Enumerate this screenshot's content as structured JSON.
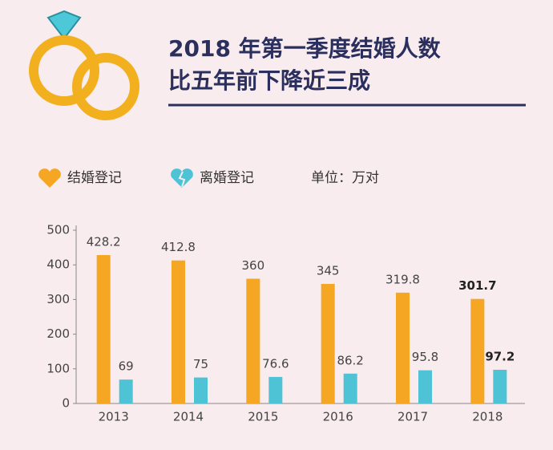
{
  "chart_data": {
    "type": "bar",
    "title": "2018 年第一季度结婚人数",
    "subtitle": "比五年前下降近三成",
    "unit": "单位：万对",
    "categories": [
      "2013",
      "2014",
      "2015",
      "2016",
      "2017",
      "2018"
    ],
    "series": [
      {
        "name": "结婚登记",
        "color": "#f5a623",
        "values": [
          428.2,
          412.8,
          360,
          345,
          319.8,
          301.7
        ]
      },
      {
        "name": "离婚登记",
        "color": "#4dc3d5",
        "values": [
          69,
          75,
          76.6,
          86.2,
          95.8,
          97.2
        ]
      }
    ],
    "ylim": [
      0,
      500
    ],
    "yticks": [
      0,
      100,
      200,
      300,
      400,
      500
    ]
  }
}
